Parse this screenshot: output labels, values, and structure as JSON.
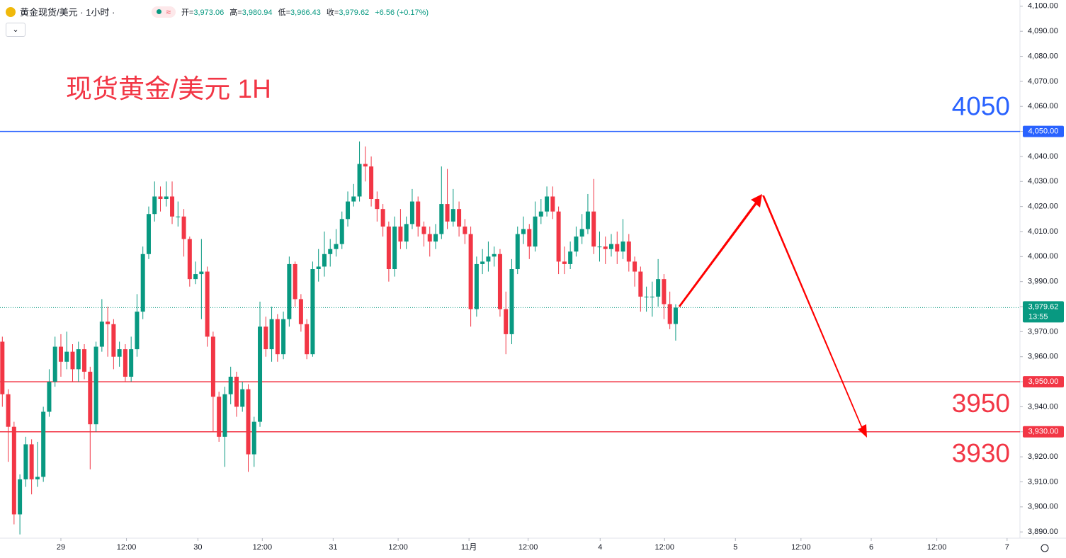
{
  "chart_data": {
    "type": "candlestick",
    "header": {
      "symbol": "黄金现货/美元 · 1小时 ·",
      "ohlc": [
        {
          "label": "开=",
          "value": "3,973.06"
        },
        {
          "label": "高=",
          "value": "3,980.94"
        },
        {
          "label": "低=",
          "value": "3,966.43"
        },
        {
          "label": "收=",
          "value": "3,979.62"
        }
      ],
      "change": "+6.56 (+0.17%)"
    },
    "title": "现货黄金/美元 1H",
    "up_color": "#089981",
    "down_color": "#f23645",
    "series": {
      "open": [
        3966,
        3945,
        3932,
        3897,
        3911,
        3925,
        3911,
        3912,
        3938,
        3950,
        3964,
        3958,
        3962,
        3955,
        3963,
        3954,
        3933,
        3964,
        3974,
        3973,
        3960,
        3963,
        3952,
        3963,
        3978,
        4001,
        4017,
        4024,
        4023,
        4024,
        4016,
        4016,
        4007,
        3991,
        3993,
        3994,
        3968,
        3944,
        3928,
        3945,
        3952,
        3940,
        3947,
        3921,
        3934,
        3972,
        3963,
        3975,
        3961,
        3975,
        3997,
        3983,
        3973,
        3961,
        3995,
        3996,
        4001,
        4003,
        4005,
        4015,
        4022,
        4024,
        4037,
        4036,
        4023,
        4019,
        4012,
        3995,
        4012,
        4006,
        4013,
        4022,
        4012,
        4009,
        4006,
        4009,
        4021,
        4014,
        4019,
        4012,
        4009,
        3979,
        3997,
        3998,
        4000,
        4001,
        3979,
        3969,
        3995,
        4009,
        4011,
        4004,
        4016,
        4018,
        4024,
        4018,
        3998,
        3997,
        4002,
        4008,
        4011,
        4018,
        4004,
        4004,
        4003,
        4005,
        4002,
        4006,
        3998,
        3994,
        3984,
        3984,
        3984,
        3991,
        3981,
        3973.06
      ],
      "high": [
        3968,
        3947,
        3934,
        3913,
        3928,
        3927,
        3926,
        3940,
        3955,
        3968,
        3969,
        3970,
        3965,
        3966,
        3965,
        3956,
        3966,
        3983,
        3980,
        3975,
        3966,
        3965,
        3968,
        3985,
        4004,
        4020,
        4030,
        4028,
        4030,
        4030,
        4022,
        4019,
        4008,
        3998,
        4007,
        3996,
        3970,
        3946,
        3948,
        3956,
        3954,
        3950,
        3949,
        3936,
        3982,
        3976,
        3980,
        3977,
        3978,
        4000,
        3998,
        3985,
        3975,
        3998,
        4003,
        4010,
        4007,
        4011,
        4018,
        4026,
        4029,
        4046,
        4044,
        4040,
        4026,
        4021,
        4014,
        4016,
        4019,
        4016,
        4027,
        4024,
        4014,
        4012,
        4013,
        4036,
        4035,
        4027,
        4022,
        4015,
        4012,
        4000,
        4003,
        4006,
        4004,
        4003,
        3986,
        3999,
        4012,
        4016,
        4013,
        4022,
        4023,
        4028,
        4028,
        4020,
        4004,
        4006,
        4012,
        4017,
        4025,
        4031,
        4010,
        4008,
        4009,
        4010,
        4015,
        4009,
        4000,
        3996,
        3988,
        3990,
        3999,
        3993,
        3986,
        3980.94
      ],
      "low": [
        3940,
        3918,
        3893,
        3889,
        3908,
        3905,
        3908,
        3910,
        3936,
        3948,
        3952,
        3955,
        3950,
        3950,
        3951,
        3915,
        3930,
        3962,
        3960,
        3955,
        3956,
        3950,
        3950,
        3960,
        3975,
        3999,
        4014,
        4018,
        4020,
        4013,
        4012,
        4000,
        3988,
        3989,
        3975,
        3964,
        3930,
        3926,
        3916,
        3941,
        3936,
        3938,
        3914,
        3916,
        3932,
        3960,
        3958,
        3958,
        3959,
        3972,
        3980,
        3970,
        3959,
        3960,
        3990,
        3992,
        3996,
        4000,
        4003,
        4012,
        4020,
        4022,
        4030,
        4020,
        4014,
        4008,
        3990,
        3992,
        4003,
        4003,
        4011,
        4008,
        4004,
        4000,
        4003,
        4007,
        4011,
        4012,
        4008,
        4005,
        3972,
        3976,
        3993,
        3994,
        3996,
        3976,
        3961,
        3965,
        3993,
        4005,
        3999,
        4002,
        4013,
        4016,
        4015,
        3993,
        3993,
        3995,
        4000,
        4005,
        4009,
        4001,
        3998,
        3997,
        4000,
        3997,
        3999,
        3994,
        3988,
        3978,
        3978,
        3976,
        3980,
        3975,
        3971,
        3966.43
      ],
      "close": [
        3945,
        3932,
        3897,
        3911,
        3925,
        3911,
        3912,
        3938,
        3950,
        3964,
        3958,
        3962,
        3955,
        3963,
        3954,
        3933,
        3964,
        3974,
        3973,
        3960,
        3963,
        3952,
        3963,
        3978,
        4001,
        4017,
        4024,
        4023,
        4024,
        4016,
        4016,
        4007,
        3991,
        3993,
        3994,
        3968,
        3944,
        3928,
        3945,
        3952,
        3940,
        3947,
        3921,
        3934,
        3972,
        3963,
        3975,
        3961,
        3975,
        3997,
        3983,
        3973,
        3961,
        3995,
        3996,
        4001,
        4003,
        4005,
        4015,
        4022,
        4024,
        4037,
        4036,
        4023,
        4019,
        4012,
        3995,
        4012,
        4006,
        4013,
        4022,
        4012,
        4009,
        4006,
        4009,
        4021,
        4014,
        4019,
        4012,
        4009,
        3979,
        3997,
        3998,
        4000,
        4001,
        3979,
        3969,
        3995,
        4009,
        4011,
        4004,
        4016,
        4018,
        4024,
        4018,
        3998,
        3997,
        4002,
        4008,
        4011,
        4018,
        4004,
        4004,
        4003,
        4005,
        4002,
        4006,
        3998,
        3994,
        3984,
        3984,
        3984,
        3991,
        3981,
        3973.06,
        3979.62
      ]
    },
    "xlim": [
      -0.4,
      173.8
    ],
    "xticks": [
      {
        "value": 10.0,
        "label": "29"
      },
      {
        "value": 21.2,
        "label": "12:00"
      },
      {
        "value": 33.4,
        "label": "30"
      },
      {
        "value": 44.4,
        "label": "12:00"
      },
      {
        "value": 56.5,
        "label": "31"
      },
      {
        "value": 67.6,
        "label": "12:00"
      },
      {
        "value": 79.7,
        "label": "11月"
      },
      {
        "value": 89.8,
        "label": "12:00"
      },
      {
        "value": 102.1,
        "label": "4"
      },
      {
        "value": 113.1,
        "label": "12:00"
      },
      {
        "value": 125.2,
        "label": "5"
      },
      {
        "value": 136.4,
        "label": "12:00"
      },
      {
        "value": 148.4,
        "label": "6"
      },
      {
        "value": 159.6,
        "label": "12:00"
      },
      {
        "value": 171.6,
        "label": "7"
      }
    ],
    "ylim": [
      3887.5,
      4102.5
    ],
    "yticks": [
      {
        "value": 3890,
        "label": "3,890.00"
      },
      {
        "value": 3900,
        "label": "3,900.00"
      },
      {
        "value": 3910,
        "label": "3,910.00"
      },
      {
        "value": 3920,
        "label": "3,920.00"
      },
      {
        "value": 3930,
        "label": "3,930.00"
      },
      {
        "value": 3940,
        "label": "3,940.00"
      },
      {
        "value": 3950,
        "label": "3,950.00"
      },
      {
        "value": 3960,
        "label": "3,960.00"
      },
      {
        "value": 3970,
        "label": "3,970.00"
      },
      {
        "value": 3980,
        "label": "3,980.00"
      },
      {
        "value": 3990,
        "label": "3,990.00"
      },
      {
        "value": 4000,
        "label": "4,000.00"
      },
      {
        "value": 4010,
        "label": "4,010.00"
      },
      {
        "value": 4020,
        "label": "4,020.00"
      },
      {
        "value": 4030,
        "label": "4,030.00"
      },
      {
        "value": 4040,
        "label": "4,040.00"
      },
      {
        "value": 4050,
        "label": "4,050.00"
      },
      {
        "value": 4060,
        "label": "4,060.00"
      },
      {
        "value": 4070,
        "label": "4,070.00"
      },
      {
        "value": 4080,
        "label": "4,080.00"
      },
      {
        "value": 4090,
        "label": "4,090.00"
      },
      {
        "value": 4100,
        "label": "4,100.00"
      }
    ],
    "levels": [
      {
        "value": 4050,
        "label": "4,050.00",
        "text": "4050",
        "color": "#2962ff",
        "annotation_side": "above"
      },
      {
        "value": 3950,
        "label": "3,950.00",
        "text": "3950",
        "color": "#f23645",
        "annotation_side": "below"
      },
      {
        "value": 3930,
        "label": "3,930.00",
        "text": "3930",
        "color": "#f23645",
        "annotation_side": "below"
      }
    ],
    "last_price": {
      "value": 3979.62,
      "label": "3,979.62",
      "countdown": "13:55",
      "color": "#089981"
    }
  }
}
